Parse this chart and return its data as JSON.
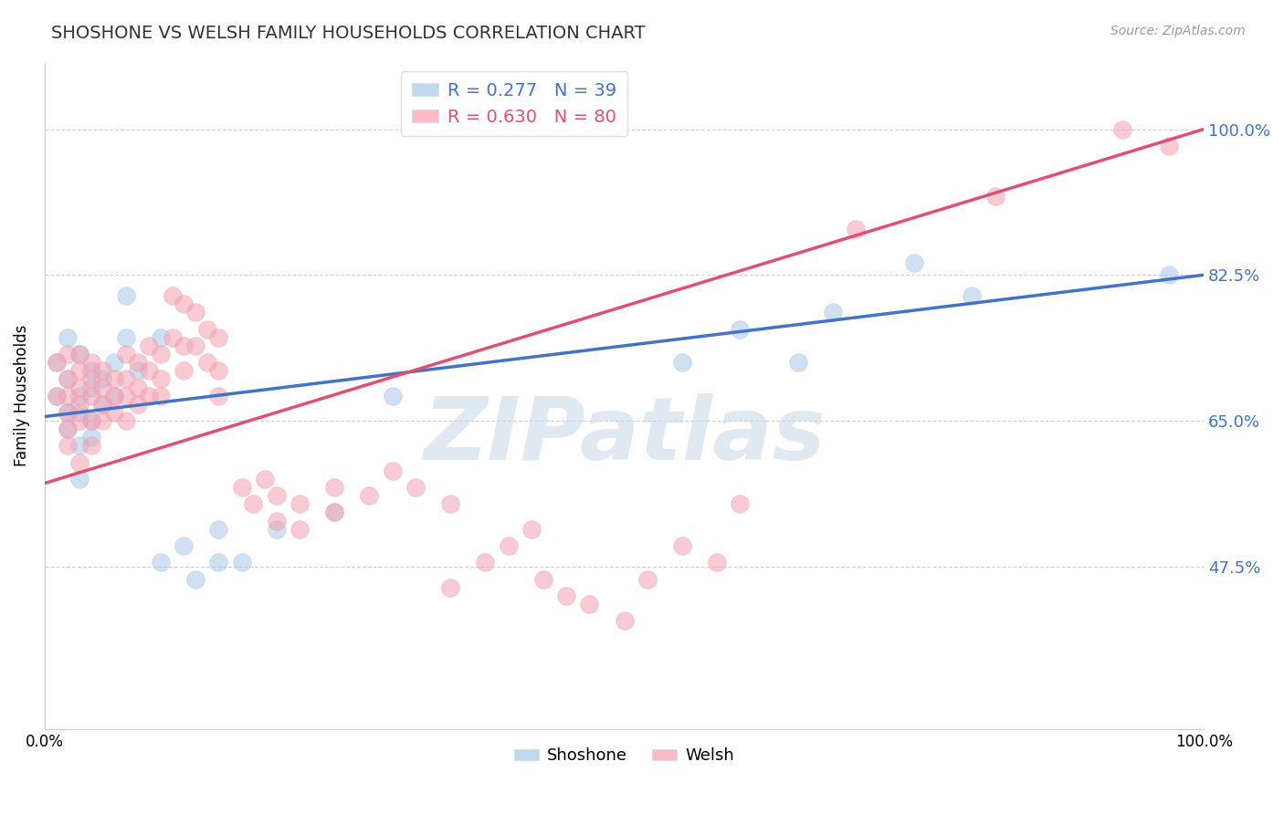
{
  "title": "SHOSHONE VS WELSH FAMILY HOUSEHOLDS CORRELATION CHART",
  "source": "Source: ZipAtlas.com",
  "ylabel": "Family Households",
  "xlim": [
    0,
    1
  ],
  "ylim": [
    0.28,
    1.08
  ],
  "yticks": [
    0.475,
    0.65,
    0.825,
    1.0
  ],
  "ytick_labels": [
    "47.5%",
    "65.0%",
    "82.5%",
    "100.0%"
  ],
  "xtick_labels": [
    "0.0%",
    "100.0%"
  ],
  "shoshone_color": "#a8c8e8",
  "welsh_color": "#f4a0b0",
  "shoshone_R": 0.277,
  "shoshone_N": 39,
  "welsh_R": 0.63,
  "welsh_N": 80,
  "legend_label_shoshone": "Shoshone",
  "legend_label_welsh": "Welsh",
  "shoshone_points": [
    [
      0.01,
      0.68
    ],
    [
      0.01,
      0.72
    ],
    [
      0.02,
      0.75
    ],
    [
      0.02,
      0.66
    ],
    [
      0.02,
      0.7
    ],
    [
      0.02,
      0.64
    ],
    [
      0.03,
      0.68
    ],
    [
      0.03,
      0.73
    ],
    [
      0.03,
      0.66
    ],
    [
      0.03,
      0.62
    ],
    [
      0.03,
      0.58
    ],
    [
      0.04,
      0.71
    ],
    [
      0.04,
      0.69
    ],
    [
      0.04,
      0.65
    ],
    [
      0.04,
      0.63
    ],
    [
      0.05,
      0.7
    ],
    [
      0.05,
      0.67
    ],
    [
      0.06,
      0.72
    ],
    [
      0.06,
      0.68
    ],
    [
      0.07,
      0.8
    ],
    [
      0.07,
      0.75
    ],
    [
      0.08,
      0.71
    ],
    [
      0.1,
      0.75
    ],
    [
      0.1,
      0.48
    ],
    [
      0.12,
      0.5
    ],
    [
      0.13,
      0.46
    ],
    [
      0.15,
      0.52
    ],
    [
      0.15,
      0.48
    ],
    [
      0.17,
      0.48
    ],
    [
      0.2,
      0.52
    ],
    [
      0.25,
      0.54
    ],
    [
      0.3,
      0.68
    ],
    [
      0.55,
      0.72
    ],
    [
      0.6,
      0.76
    ],
    [
      0.65,
      0.72
    ],
    [
      0.68,
      0.78
    ],
    [
      0.75,
      0.84
    ],
    [
      0.8,
      0.8
    ],
    [
      0.97,
      0.825
    ]
  ],
  "welsh_points": [
    [
      0.01,
      0.68
    ],
    [
      0.01,
      0.72
    ],
    [
      0.02,
      0.7
    ],
    [
      0.02,
      0.66
    ],
    [
      0.02,
      0.73
    ],
    [
      0.02,
      0.64
    ],
    [
      0.02,
      0.68
    ],
    [
      0.02,
      0.62
    ],
    [
      0.03,
      0.71
    ],
    [
      0.03,
      0.69
    ],
    [
      0.03,
      0.67
    ],
    [
      0.03,
      0.65
    ],
    [
      0.03,
      0.73
    ],
    [
      0.03,
      0.6
    ],
    [
      0.04,
      0.7
    ],
    [
      0.04,
      0.68
    ],
    [
      0.04,
      0.72
    ],
    [
      0.04,
      0.65
    ],
    [
      0.04,
      0.62
    ],
    [
      0.05,
      0.71
    ],
    [
      0.05,
      0.69
    ],
    [
      0.05,
      0.67
    ],
    [
      0.05,
      0.65
    ],
    [
      0.06,
      0.7
    ],
    [
      0.06,
      0.68
    ],
    [
      0.06,
      0.66
    ],
    [
      0.07,
      0.73
    ],
    [
      0.07,
      0.7
    ],
    [
      0.07,
      0.68
    ],
    [
      0.07,
      0.65
    ],
    [
      0.08,
      0.72
    ],
    [
      0.08,
      0.69
    ],
    [
      0.08,
      0.67
    ],
    [
      0.09,
      0.74
    ],
    [
      0.09,
      0.71
    ],
    [
      0.09,
      0.68
    ],
    [
      0.1,
      0.73
    ],
    [
      0.1,
      0.7
    ],
    [
      0.1,
      0.68
    ],
    [
      0.11,
      0.8
    ],
    [
      0.11,
      0.75
    ],
    [
      0.12,
      0.79
    ],
    [
      0.12,
      0.74
    ],
    [
      0.12,
      0.71
    ],
    [
      0.13,
      0.78
    ],
    [
      0.13,
      0.74
    ],
    [
      0.14,
      0.76
    ],
    [
      0.14,
      0.72
    ],
    [
      0.15,
      0.75
    ],
    [
      0.15,
      0.71
    ],
    [
      0.15,
      0.68
    ],
    [
      0.17,
      0.57
    ],
    [
      0.18,
      0.55
    ],
    [
      0.19,
      0.58
    ],
    [
      0.2,
      0.56
    ],
    [
      0.2,
      0.53
    ],
    [
      0.22,
      0.55
    ],
    [
      0.22,
      0.52
    ],
    [
      0.25,
      0.57
    ],
    [
      0.25,
      0.54
    ],
    [
      0.28,
      0.56
    ],
    [
      0.3,
      0.59
    ],
    [
      0.32,
      0.57
    ],
    [
      0.35,
      0.55
    ],
    [
      0.35,
      0.45
    ],
    [
      0.38,
      0.48
    ],
    [
      0.4,
      0.5
    ],
    [
      0.42,
      0.52
    ],
    [
      0.43,
      0.46
    ],
    [
      0.45,
      0.44
    ],
    [
      0.47,
      0.43
    ],
    [
      0.5,
      0.41
    ],
    [
      0.52,
      0.46
    ],
    [
      0.55,
      0.5
    ],
    [
      0.58,
      0.48
    ],
    [
      0.6,
      0.55
    ],
    [
      0.7,
      0.88
    ],
    [
      0.82,
      0.92
    ],
    [
      0.93,
      1.0
    ],
    [
      0.97,
      0.98
    ]
  ],
  "grid_color": "#bbbbbb",
  "line_blue": "#4472c4",
  "line_pink": "#e05070",
  "watermark_color": "#c8d8e8",
  "watermark_text": "ZIPatlas",
  "annotation_color": "#4472c4",
  "title_color": "#333333"
}
